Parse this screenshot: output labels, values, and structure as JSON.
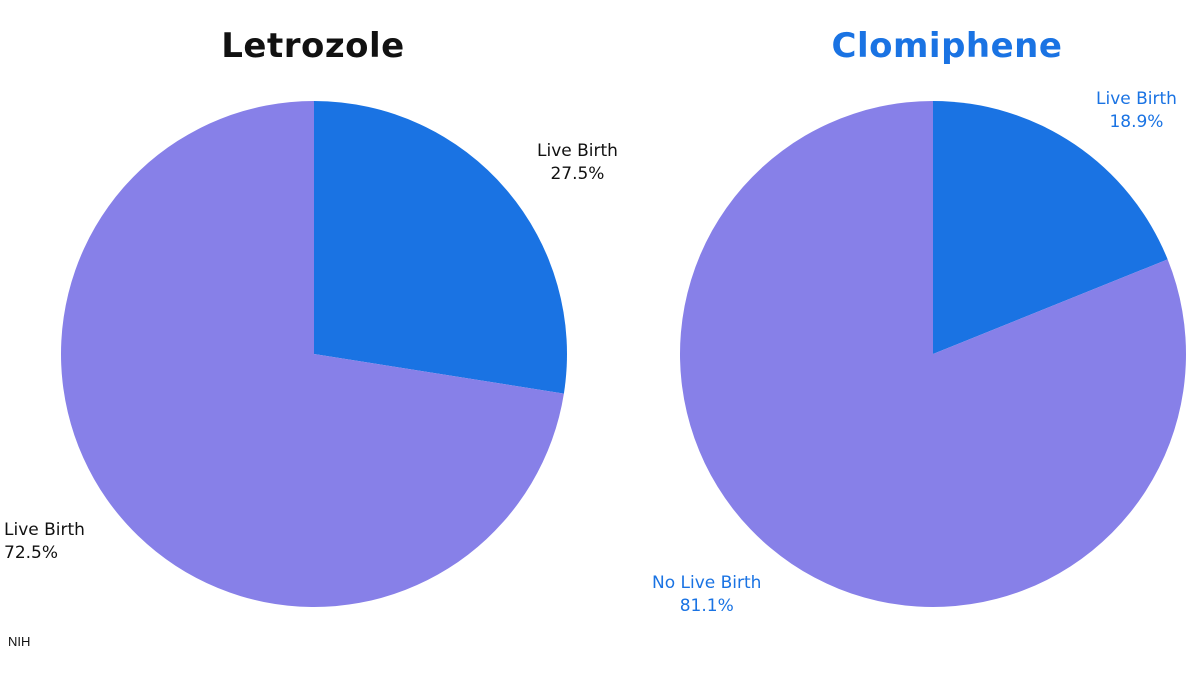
{
  "chart_data": [
    {
      "type": "pie",
      "title": "Letrozole",
      "title_color": "#111111",
      "label_color": "#111111",
      "slices": [
        {
          "name": "Live Birth",
          "value": 27.5,
          "value_label": "27.5%",
          "color": "#1a73e3"
        },
        {
          "name": "Live Birth",
          "value": 72.5,
          "value_label": "72.5%",
          "color": "#8780e8"
        }
      ]
    },
    {
      "type": "pie",
      "title": "Clomiphene",
      "title_color": "#1a73e3",
      "label_color": "#1a73e3",
      "slices": [
        {
          "name": "Live Birth",
          "value": 18.9,
          "value_label": "18.9%",
          "color": "#1a73e3"
        },
        {
          "name": "No Live Birth",
          "value": 81.1,
          "value_label": "81.1%",
          "color": "#8780e8"
        }
      ]
    }
  ],
  "source": "NIH"
}
